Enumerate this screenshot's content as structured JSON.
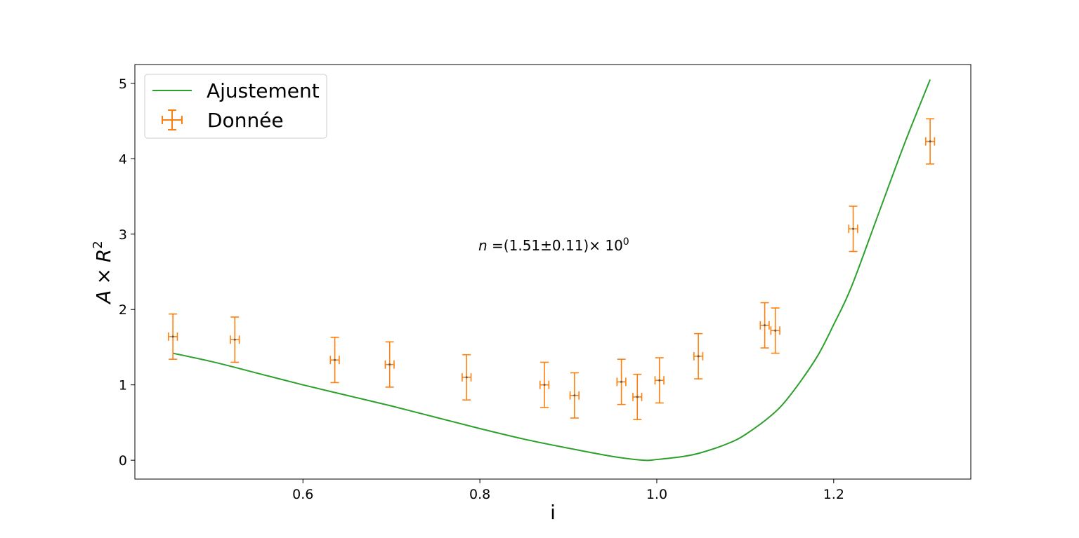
{
  "chart_data": {
    "type": "scatter",
    "xlabel": "i",
    "ylabel_parts": {
      "a": "A",
      "times": "×",
      "r": "R",
      "exp": "2"
    },
    "xlim": [
      0.41,
      1.355
    ],
    "ylim": [
      -0.25,
      5.25
    ],
    "xticks": [
      0.6,
      0.8,
      1.0,
      1.2
    ],
    "xtick_labels": [
      "0.6",
      "0.8",
      "1.0",
      "1.2"
    ],
    "yticks": [
      0,
      1,
      2,
      3,
      4,
      5
    ],
    "ytick_labels": [
      "0",
      "1",
      "2",
      "3",
      "4",
      "5"
    ],
    "grid": false,
    "legend": {
      "placement": "top-left",
      "entries": [
        {
          "label": "Ajustement",
          "color": "#2ca02c",
          "kind": "line"
        },
        {
          "label": "Donnée",
          "color": "#ff7f0e",
          "kind": "errorbar"
        }
      ]
    },
    "annotation": {
      "var": "n",
      "text": " =(1.51±0.11)× 10",
      "exp": "0",
      "x": 0.8,
      "y": 2.8
    },
    "series": [
      {
        "name": "Donnée",
        "kind": "errorbar",
        "color": "#ff7f0e",
        "x": [
          0.453,
          0.523,
          0.636,
          0.698,
          0.785,
          0.873,
          0.907,
          0.96,
          0.978,
          1.003,
          1.047,
          1.122,
          1.134,
          1.222,
          1.309
        ],
        "y": [
          1.64,
          1.6,
          1.33,
          1.27,
          1.1,
          1.0,
          0.86,
          1.04,
          0.84,
          1.06,
          1.38,
          1.79,
          1.72,
          3.07,
          4.23
        ],
        "yerr": [
          0.3,
          0.3,
          0.3,
          0.3,
          0.3,
          0.3,
          0.3,
          0.3,
          0.3,
          0.3,
          0.3,
          0.3,
          0.3,
          0.3,
          0.3
        ],
        "xerr": [
          0.005,
          0.005,
          0.005,
          0.005,
          0.005,
          0.005,
          0.005,
          0.005,
          0.005,
          0.005,
          0.005,
          0.005,
          0.005,
          0.005,
          0.005
        ]
      },
      {
        "name": "Ajustement",
        "kind": "line",
        "color": "#2ca02c",
        "x": [
          0.453,
          0.5,
          0.55,
          0.6,
          0.65,
          0.7,
          0.75,
          0.8,
          0.85,
          0.9,
          0.95,
          0.985,
          1.0,
          1.03,
          1.05,
          1.08,
          1.1,
          1.13,
          1.15,
          1.18,
          1.2,
          1.22,
          1.25,
          1.28,
          1.309
        ],
        "y": [
          1.42,
          1.3,
          1.15,
          1.0,
          0.86,
          0.72,
          0.57,
          0.42,
          0.28,
          0.16,
          0.05,
          0.0,
          0.01,
          0.05,
          0.1,
          0.22,
          0.34,
          0.6,
          0.85,
          1.35,
          1.8,
          2.3,
          3.25,
          4.2,
          5.05
        ]
      }
    ]
  }
}
